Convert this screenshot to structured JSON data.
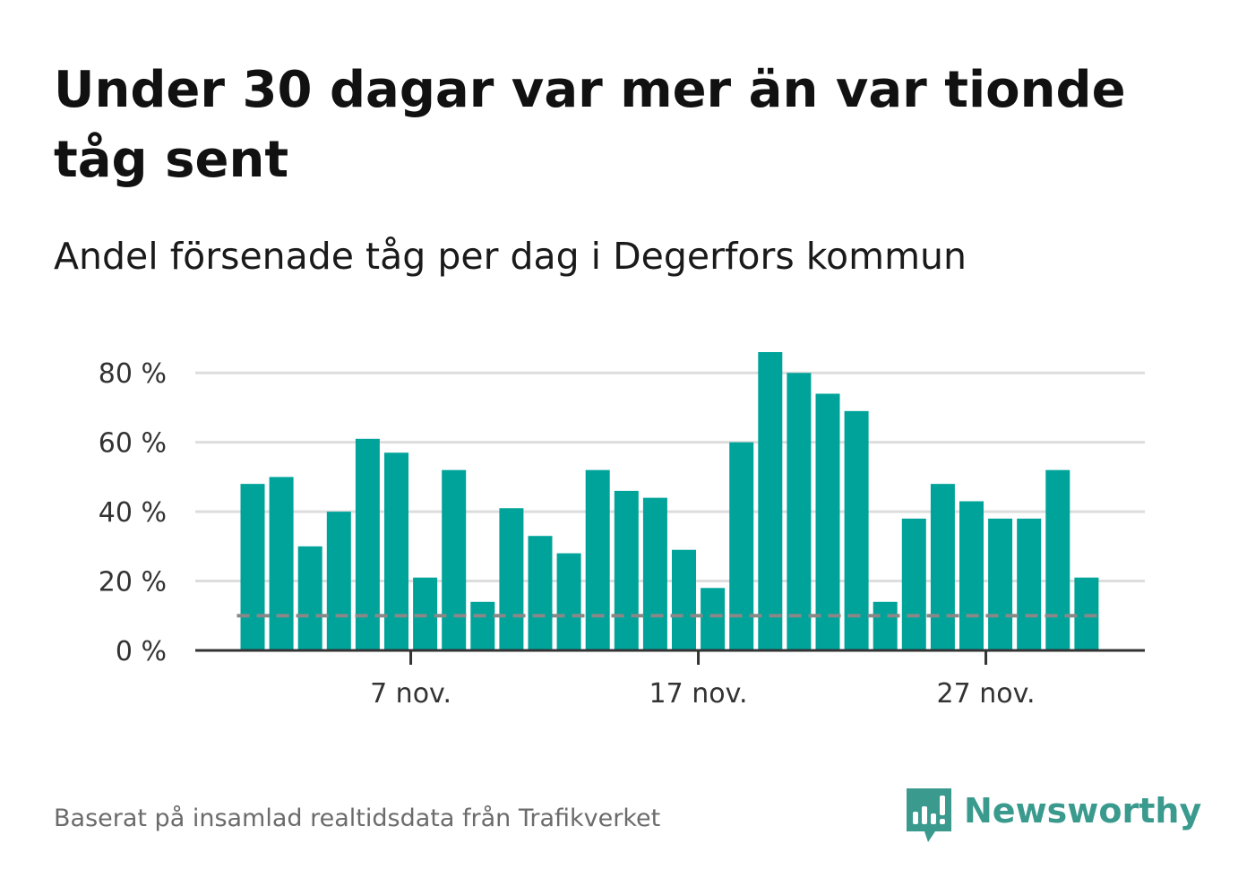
{
  "title": "Under 30 dagar var mer än var tionde tåg sent",
  "subtitle": "Andel försenade tåg per dag i Degerfors kommun",
  "footer": "Baserat på insamlad realtidsdata från Trafikverket",
  "brand": {
    "name": "Newsworthy",
    "icon": "newsworthy-logo-icon",
    "color": "#3a9a8e"
  },
  "chart_data": {
    "type": "bar",
    "x": [
      "2024-11-01",
      "2024-11-02",
      "2024-11-03",
      "2024-11-04",
      "2024-11-05",
      "2024-11-06",
      "2024-11-07",
      "2024-11-08",
      "2024-11-09",
      "2024-11-10",
      "2024-11-11",
      "2024-11-12",
      "2024-11-13",
      "2024-11-14",
      "2024-11-15",
      "2024-11-16",
      "2024-11-17",
      "2024-11-18",
      "2024-11-19",
      "2024-11-20",
      "2024-11-21",
      "2024-11-22",
      "2024-11-23",
      "2024-11-24",
      "2024-11-25",
      "2024-11-26",
      "2024-11-27",
      "2024-11-28",
      "2024-11-29",
      "2024-11-30"
    ],
    "values": [
      48,
      50,
      30,
      40,
      61,
      57,
      21,
      52,
      14,
      41,
      33,
      28,
      52,
      46,
      44,
      29,
      18,
      60,
      86,
      80,
      74,
      69,
      14,
      38,
      48,
      43,
      38,
      38,
      52,
      21
    ],
    "ylim": [
      0,
      86
    ],
    "yticks": [
      0,
      20,
      40,
      60,
      80
    ],
    "ytick_labels": [
      "0 %",
      "20 %",
      "40 %",
      "60 %",
      "80 %"
    ],
    "xtick_labels": [
      "7 nov.",
      "17 nov.",
      "27 nov."
    ],
    "xtick_indices": [
      6,
      16,
      26
    ],
    "reference_line": {
      "value": 10,
      "style": "dashed",
      "color": "#888888"
    },
    "bar_color": "#00a39a",
    "grid": true,
    "legend": "none"
  }
}
